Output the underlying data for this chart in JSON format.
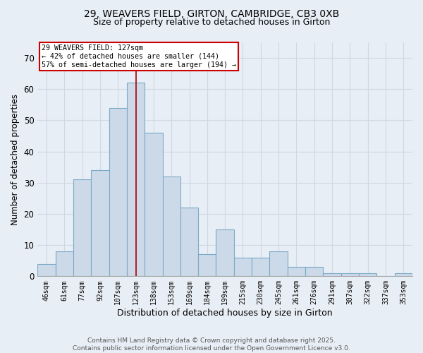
{
  "title_line1": "29, WEAVERS FIELD, GIRTON, CAMBRIDGE, CB3 0XB",
  "title_line2": "Size of property relative to detached houses in Girton",
  "xlabel": "Distribution of detached houses by size in Girton",
  "ylabel": "Number of detached properties",
  "bar_labels": [
    "46sqm",
    "61sqm",
    "77sqm",
    "92sqm",
    "107sqm",
    "123sqm",
    "138sqm",
    "153sqm",
    "169sqm",
    "184sqm",
    "199sqm",
    "215sqm",
    "230sqm",
    "245sqm",
    "261sqm",
    "276sqm",
    "291sqm",
    "307sqm",
    "322sqm",
    "337sqm",
    "353sqm"
  ],
  "bar_values": [
    4,
    8,
    31,
    34,
    54,
    62,
    46,
    32,
    22,
    7,
    15,
    6,
    6,
    8,
    3,
    3,
    1,
    1,
    1,
    0,
    1
  ],
  "bar_color": "#ccd9e8",
  "bar_edge_color": "#7aaac8",
  "vline_x_index": 5,
  "vline_color": "#aa0000",
  "annotation_text": "29 WEAVERS FIELD: 127sqm\n← 42% of detached houses are smaller (144)\n57% of semi-detached houses are larger (194) →",
  "annotation_box_color": "#ffffff",
  "annotation_box_edge": "#cc0000",
  "ylim": [
    0,
    75
  ],
  "yticks": [
    0,
    10,
    20,
    30,
    40,
    50,
    60,
    70
  ],
  "grid_color": "#d0d8e4",
  "footer_text": "Contains HM Land Registry data © Crown copyright and database right 2025.\nContains public sector information licensed under the Open Government Licence v3.0.",
  "bg_color": "#e8eef5"
}
